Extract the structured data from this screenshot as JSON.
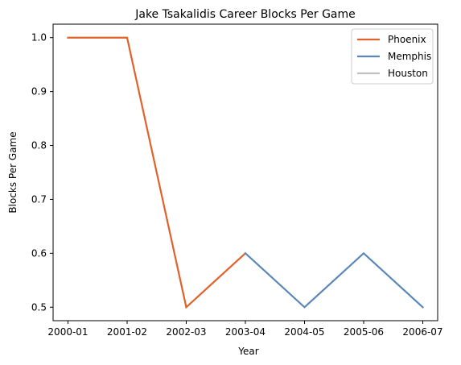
{
  "chart_data": {
    "type": "line",
    "title": "Jake Tsakalidis Career Blocks Per Game",
    "xlabel": "Year",
    "ylabel": "Blocks Per Game",
    "categories": [
      "2000-01",
      "2001-02",
      "2002-03",
      "2003-04",
      "2004-05",
      "2005-06",
      "2006-07"
    ],
    "ylim": [
      0.475,
      1.025
    ],
    "yticks": [
      "0.5",
      "0.6",
      "0.7",
      "0.8",
      "0.9",
      "1.0"
    ],
    "grid": false,
    "legend_position": "top-right",
    "series": [
      {
        "name": "Phoenix",
        "color": "#e0622a",
        "values": [
          1.0,
          1.0,
          0.5,
          0.6,
          null,
          null,
          null
        ]
      },
      {
        "name": "Memphis",
        "color": "#5b87b8",
        "values": [
          null,
          null,
          null,
          0.6,
          0.5,
          0.6,
          0.5
        ]
      },
      {
        "name": "Houston",
        "color": "#c0c0c0",
        "values": [
          null,
          null,
          null,
          null,
          null,
          null,
          null
        ]
      }
    ]
  }
}
